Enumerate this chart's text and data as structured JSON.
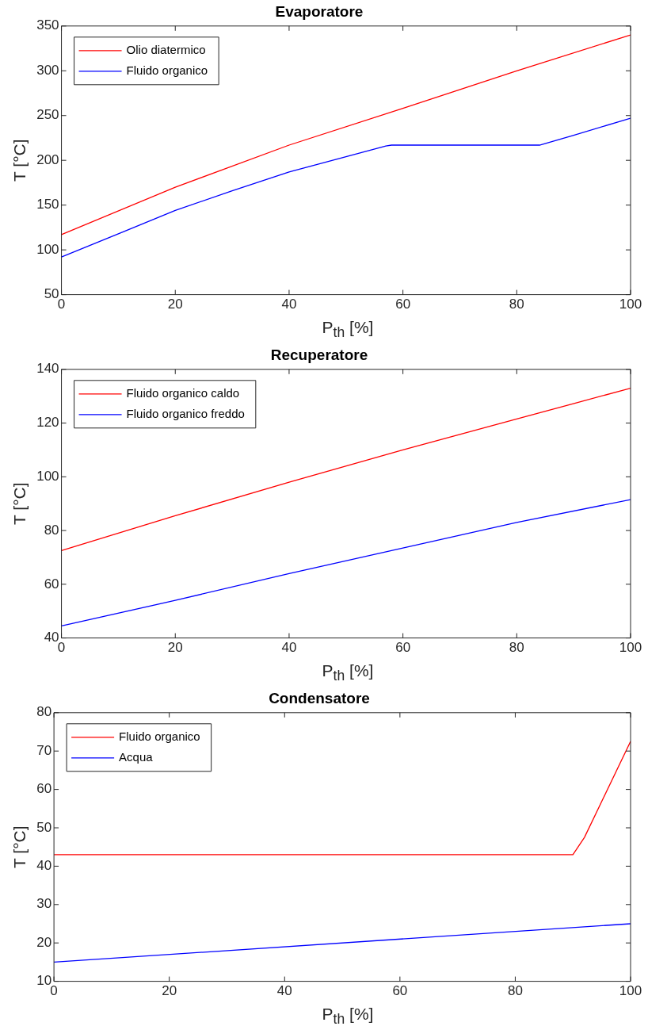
{
  "chart_data": [
    {
      "type": "line",
      "title": "Evaporatore",
      "xlabel": "P$_{th}$ [%]",
      "ylabel": "T [°C]",
      "xlim": [
        0,
        100
      ],
      "xticks": [
        0,
        20,
        40,
        60,
        80,
        100
      ],
      "ylim": [
        50,
        350
      ],
      "yticks": [
        50,
        100,
        150,
        200,
        250,
        300,
        350
      ],
      "grid": false,
      "legend": "top left",
      "series": [
        {
          "name": "Olio diatermico",
          "color": "#ff0000",
          "x": [
            0,
            20,
            40,
            60,
            80,
            100
          ],
          "values": [
            117,
            170,
            217,
            258,
            300,
            340
          ]
        },
        {
          "name": "Fluido organico",
          "color": "#0000ff",
          "x": [
            0,
            10,
            20,
            30,
            40,
            50,
            57,
            58,
            84,
            90,
            100
          ],
          "values": [
            92,
            118,
            144,
            166,
            187,
            204,
            216,
            217,
            217,
            228,
            247
          ]
        }
      ]
    },
    {
      "type": "line",
      "title": "Recuperatore",
      "xlabel": "P$_{th}$ [%]",
      "ylabel": "T [°C]",
      "xlim": [
        0,
        100
      ],
      "xticks": [
        0,
        20,
        40,
        60,
        80,
        100
      ],
      "ylim": [
        40,
        140
      ],
      "yticks": [
        40,
        60,
        80,
        100,
        120,
        140
      ],
      "grid": false,
      "legend": "top left",
      "series": [
        {
          "name": "Fluido organico caldo",
          "color": "#ff0000",
          "x": [
            0,
            20,
            40,
            60,
            80,
            100
          ],
          "values": [
            72.5,
            85.5,
            98,
            110,
            121.5,
            133
          ]
        },
        {
          "name": "Fluido organico freddo",
          "color": "#0000ff",
          "x": [
            0,
            20,
            40,
            60,
            80,
            100
          ],
          "values": [
            44.5,
            54,
            64,
            73.5,
            83,
            91.5
          ]
        }
      ]
    },
    {
      "type": "line",
      "title": "Condensatore",
      "xlabel": "P$_{th}$ [%]",
      "ylabel": "T [°C]",
      "xlim": [
        0,
        100
      ],
      "xticks": [
        0,
        20,
        40,
        60,
        80,
        100
      ],
      "ylim": [
        10,
        80
      ],
      "yticks": [
        10,
        20,
        30,
        40,
        50,
        60,
        70,
        80
      ],
      "grid": false,
      "legend": "top left",
      "series": [
        {
          "name": "Fluido organico",
          "color": "#ff0000",
          "x": [
            0,
            90,
            92,
            100
          ],
          "values": [
            43,
            43,
            47.5,
            72.5
          ]
        },
        {
          "name": "Acqua",
          "color": "#0000ff",
          "x": [
            0,
            100
          ],
          "values": [
            15,
            25
          ]
        }
      ]
    }
  ]
}
